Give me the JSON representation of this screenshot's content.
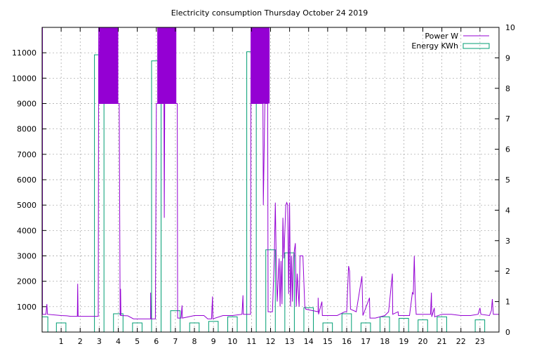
{
  "chart_data": {
    "type": "line",
    "title": "Electricity consumption Thursday October 24 2019",
    "xlabel": "",
    "ylabel": "",
    "xlim": [
      0,
      24
    ],
    "ylim": [
      0,
      12000
    ],
    "y2lim": [
      0,
      10
    ],
    "x_ticks": [
      1,
      2,
      3,
      4,
      5,
      6,
      7,
      8,
      9,
      10,
      11,
      12,
      13,
      14,
      15,
      16,
      17,
      18,
      19,
      20,
      21,
      22,
      23
    ],
    "y_ticks": [
      1000,
      2000,
      3000,
      4000,
      5000,
      6000,
      7000,
      8000,
      9000,
      10000,
      11000
    ],
    "y2_ticks": [
      0,
      1,
      2,
      3,
      4,
      5,
      6,
      7,
      8,
      9,
      10
    ],
    "grid": true,
    "legend_position": "top-right",
    "colors": {
      "power": "#9400d3",
      "energy": "#009e73"
    },
    "series": [
      {
        "name": "Power W",
        "kind": "line",
        "axis": "y1",
        "points": [
          [
            0.0,
            12000
          ],
          [
            0.02,
            12000
          ],
          [
            0.02,
            700
          ],
          [
            0.2,
            700
          ],
          [
            0.25,
            1100
          ],
          [
            0.28,
            700
          ],
          [
            1.0,
            650
          ],
          [
            1.3,
            640
          ],
          [
            1.5,
            620
          ],
          [
            1.85,
            620
          ],
          [
            1.87,
            1900
          ],
          [
            1.89,
            620
          ],
          [
            2.95,
            620
          ],
          [
            2.97,
            12000
          ],
          [
            3.0,
            9000
          ],
          [
            3.5,
            9000
          ],
          [
            3.95,
            9000
          ],
          [
            4.05,
            9000
          ],
          [
            4.1,
            650
          ],
          [
            4.12,
            1700
          ],
          [
            4.14,
            650
          ],
          [
            4.5,
            640
          ],
          [
            4.8,
            520
          ],
          [
            5.7,
            520
          ],
          [
            5.7,
            1550
          ],
          [
            5.72,
            520
          ],
          [
            5.95,
            520
          ],
          [
            6.0,
            9000
          ],
          [
            6.4,
            9000
          ],
          [
            6.42,
            4500
          ],
          [
            6.44,
            9000
          ],
          [
            6.6,
            9000
          ],
          [
            7.1,
            9000
          ],
          [
            7.12,
            550
          ],
          [
            7.3,
            550
          ],
          [
            7.35,
            1050
          ],
          [
            7.37,
            550
          ],
          [
            8.0,
            650
          ],
          [
            8.5,
            650
          ],
          [
            8.7,
            520
          ],
          [
            8.9,
            520
          ],
          [
            8.95,
            1400
          ],
          [
            8.97,
            520
          ],
          [
            9.5,
            650
          ],
          [
            10.0,
            650
          ],
          [
            10.5,
            700
          ],
          [
            10.55,
            1450
          ],
          [
            10.57,
            700
          ],
          [
            10.95,
            700
          ],
          [
            10.97,
            12000
          ],
          [
            11.0,
            9000
          ],
          [
            11.6,
            9000
          ],
          [
            11.62,
            5000
          ],
          [
            11.7,
            9000
          ],
          [
            11.85,
            9000
          ],
          [
            11.87,
            800
          ],
          [
            12.1,
            800
          ],
          [
            12.2,
            3000
          ],
          [
            12.25,
            5100
          ],
          [
            12.3,
            2800
          ],
          [
            12.35,
            1200
          ],
          [
            12.45,
            2900
          ],
          [
            12.5,
            1000
          ],
          [
            12.55,
            2800
          ],
          [
            12.6,
            1100
          ],
          [
            12.65,
            4500
          ],
          [
            12.7,
            2900
          ],
          [
            12.8,
            5000
          ],
          [
            12.85,
            5100
          ],
          [
            12.9,
            5000
          ],
          [
            12.95,
            1500
          ],
          [
            13.0,
            5100
          ],
          [
            13.05,
            1000
          ],
          [
            13.1,
            3000
          ],
          [
            13.15,
            1200
          ],
          [
            13.2,
            2900
          ],
          [
            13.3,
            3500
          ],
          [
            13.35,
            1000
          ],
          [
            13.4,
            2300
          ],
          [
            13.5,
            1000
          ],
          [
            13.55,
            3000
          ],
          [
            13.7,
            3000
          ],
          [
            13.8,
            1000
          ],
          [
            13.85,
            900
          ],
          [
            14.5,
            800
          ],
          [
            14.5,
            1350
          ],
          [
            14.52,
            700
          ],
          [
            14.7,
            1200
          ],
          [
            14.72,
            650
          ],
          [
            15.5,
            650
          ],
          [
            15.9,
            800
          ],
          [
            16.0,
            800
          ],
          [
            16.1,
            2600
          ],
          [
            16.15,
            2400
          ],
          [
            16.2,
            900
          ],
          [
            16.5,
            800
          ],
          [
            16.8,
            2200
          ],
          [
            16.85,
            650
          ],
          [
            17.2,
            1350
          ],
          [
            17.22,
            550
          ],
          [
            17.5,
            550
          ],
          [
            18.0,
            650
          ],
          [
            18.2,
            800
          ],
          [
            18.4,
            2300
          ],
          [
            18.42,
            700
          ],
          [
            18.7,
            800
          ],
          [
            18.72,
            650
          ],
          [
            19.3,
            650
          ],
          [
            19.45,
            1550
          ],
          [
            19.5,
            1500
          ],
          [
            19.55,
            3000
          ],
          [
            19.6,
            1350
          ],
          [
            19.65,
            700
          ],
          [
            20.0,
            700
          ],
          [
            20.4,
            700
          ],
          [
            20.45,
            1550
          ],
          [
            20.47,
            600
          ],
          [
            20.6,
            950
          ],
          [
            20.62,
            600
          ],
          [
            21.0,
            700
          ],
          [
            21.5,
            700
          ],
          [
            22.0,
            650
          ],
          [
            22.5,
            650
          ],
          [
            22.9,
            700
          ],
          [
            23.0,
            950
          ],
          [
            23.05,
            700
          ],
          [
            23.5,
            650
          ],
          [
            23.6,
            850
          ],
          [
            23.65,
            1300
          ],
          [
            23.7,
            700
          ],
          [
            24.0,
            700
          ]
        ]
      },
      {
        "name": "Energy KWh",
        "kind": "bar",
        "axis": "y2",
        "bar_width": 0.5,
        "bars": [
          [
            0.05,
            0.5
          ],
          [
            1.0,
            0.3
          ],
          [
            2.0,
            0.0
          ],
          [
            3.0,
            9.1
          ],
          [
            4.0,
            0.6
          ],
          [
            5.0,
            0.3
          ],
          [
            6.0,
            8.9
          ],
          [
            7.0,
            0.7
          ],
          [
            8.0,
            0.3
          ],
          [
            9.0,
            0.35
          ],
          [
            10.0,
            0.5
          ],
          [
            11.0,
            9.2
          ],
          [
            12.0,
            2.7
          ],
          [
            13.0,
            2.6
          ],
          [
            14.0,
            0.8
          ],
          [
            15.0,
            0.3
          ],
          [
            16.0,
            0.6
          ],
          [
            17.0,
            0.3
          ],
          [
            18.0,
            0.5
          ],
          [
            19.0,
            0.45
          ],
          [
            20.0,
            0.4
          ],
          [
            21.0,
            0.5
          ],
          [
            22.0,
            0.0
          ],
          [
            23.0,
            0.4
          ]
        ]
      }
    ]
  }
}
